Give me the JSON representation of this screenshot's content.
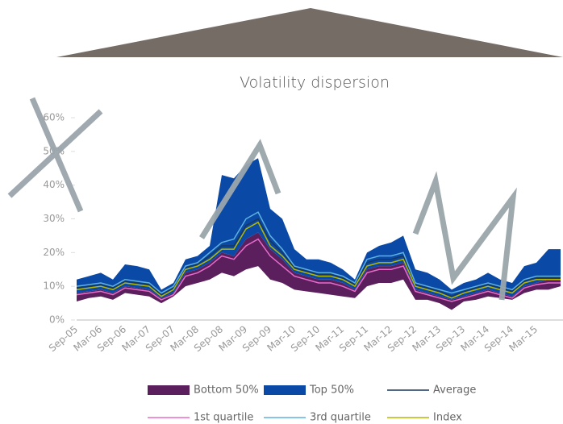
{
  "chart_data": {
    "type": "dispersion",
    "title": "Volatility dispersion",
    "categories": [
      "Sep-05",
      null,
      "Mar-06",
      null,
      "Sep-06",
      null,
      "Mar-07",
      null,
      "Sep-07",
      null,
      "Mar-08",
      null,
      "Sep-08",
      null,
      "Mar-09",
      null,
      "Sep-09",
      null,
      "Mar-10",
      null,
      "Sep-10",
      null,
      "Mar-11",
      null,
      "Sep-11",
      null,
      "Mar-12",
      null,
      "Sep-12",
      null,
      "Mar-13",
      null,
      "Sep-13",
      null,
      "Mar-14",
      null,
      "Sep-14",
      null,
      "Mar-15",
      null,
      null
    ],
    "ylim": [
      0,
      60
    ],
    "yticks": [
      {
        "value": 0,
        "label": "0%"
      },
      {
        "value": 10,
        "label": "10%"
      },
      {
        "value": 20,
        "label": "20%"
      },
      {
        "value": 30,
        "label": "30%"
      },
      {
        "value": 40,
        "label": "40%"
      },
      {
        "value": 50,
        "label": "50%"
      },
      {
        "value": 60,
        "label": "60%"
      }
    ],
    "series": [
      {
        "name": "Bottom 50%",
        "kind": "band",
        "color": "#5a1f5c",
        "values": [
          8,
          8.5,
          9,
          8,
          10,
          9.5,
          9,
          6.5,
          8,
          14,
          15,
          17,
          20,
          19,
          24,
          26,
          21,
          18,
          14,
          13,
          12,
          12,
          11,
          9,
          15,
          16,
          16,
          17,
          9,
          8,
          7,
          6,
          7,
          8,
          9,
          8,
          7,
          10,
          11,
          12,
          12
        ],
        "min": [
          5.5,
          6.5,
          7,
          6,
          8,
          7.5,
          7,
          5,
          7,
          10,
          11,
          12,
          14,
          13,
          15,
          16,
          12,
          11,
          9,
          8.5,
          8,
          7.5,
          7,
          6.5,
          10,
          11,
          11,
          12,
          6,
          6,
          5,
          3,
          5.5,
          6,
          7,
          6.5,
          6,
          8,
          9,
          9,
          10
        ]
      },
      {
        "name": "Top 50%",
        "kind": "band",
        "color": "#0a4aa6",
        "values": [
          12,
          13,
          14,
          12,
          16.5,
          16,
          15,
          9,
          11,
          18,
          19,
          22,
          43,
          42,
          46,
          48,
          33,
          30,
          21,
          18,
          18,
          17,
          15,
          12,
          20,
          22,
          23,
          25,
          15,
          14,
          12,
          9,
          11,
          12,
          14,
          12,
          11,
          16,
          17,
          21,
          21
        ]
      },
      {
        "name": "Average",
        "kind": "line",
        "color": "#17375e",
        "values": [
          9.5,
          10,
          10.5,
          9.5,
          11.5,
          11,
          10.5,
          7.5,
          9.5,
          15.5,
          16.5,
          19,
          22,
          22,
          28,
          30,
          23.5,
          20,
          15.5,
          14.5,
          13.5,
          13.5,
          12.5,
          10.5,
          17,
          18,
          18,
          19,
          10.5,
          9.5,
          8.5,
          7,
          8.5,
          9.5,
          10.5,
          9.5,
          8.5,
          11.5,
          12.5,
          12.5,
          12.5
        ]
      },
      {
        "name": "1st quartile",
        "kind": "line",
        "color": "#e86ccc",
        "values": [
          7.5,
          8,
          8.5,
          7.5,
          9.5,
          9,
          8.5,
          6,
          7.5,
          13,
          14,
          16,
          19,
          18,
          22,
          24,
          19,
          16,
          13,
          12,
          11,
          11,
          10,
          8.5,
          14,
          15,
          15,
          16,
          8.5,
          7.5,
          6.5,
          5.5,
          6.5,
          7.5,
          8.5,
          7.5,
          6.5,
          9.5,
          10.5,
          11,
          11
        ]
      },
      {
        "name": "3rd quartile",
        "kind": "line",
        "color": "#5fb2e0",
        "values": [
          10,
          10.5,
          11,
          10,
          12,
          11.5,
          11,
          8,
          10,
          16,
          17,
          20,
          23,
          24,
          30,
          32,
          25,
          21,
          16,
          15,
          14,
          14,
          13,
          11,
          18,
          19,
          19,
          20,
          11,
          10,
          9,
          8,
          9,
          10,
          11,
          10,
          9,
          12,
          13,
          13,
          13
        ]
      },
      {
        "name": "Index",
        "kind": "line",
        "color": "#b5b800",
        "values": [
          9,
          9.5,
          10,
          9,
          11,
          10.5,
          10,
          7,
          9,
          15,
          16,
          18,
          21,
          21,
          27,
          29,
          22,
          19,
          15,
          14,
          13,
          13,
          12,
          10,
          16,
          17,
          17,
          18,
          10,
          9,
          8,
          6.5,
          8,
          9,
          10,
          9,
          8,
          11,
          12,
          12,
          12
        ]
      }
    ]
  }
}
